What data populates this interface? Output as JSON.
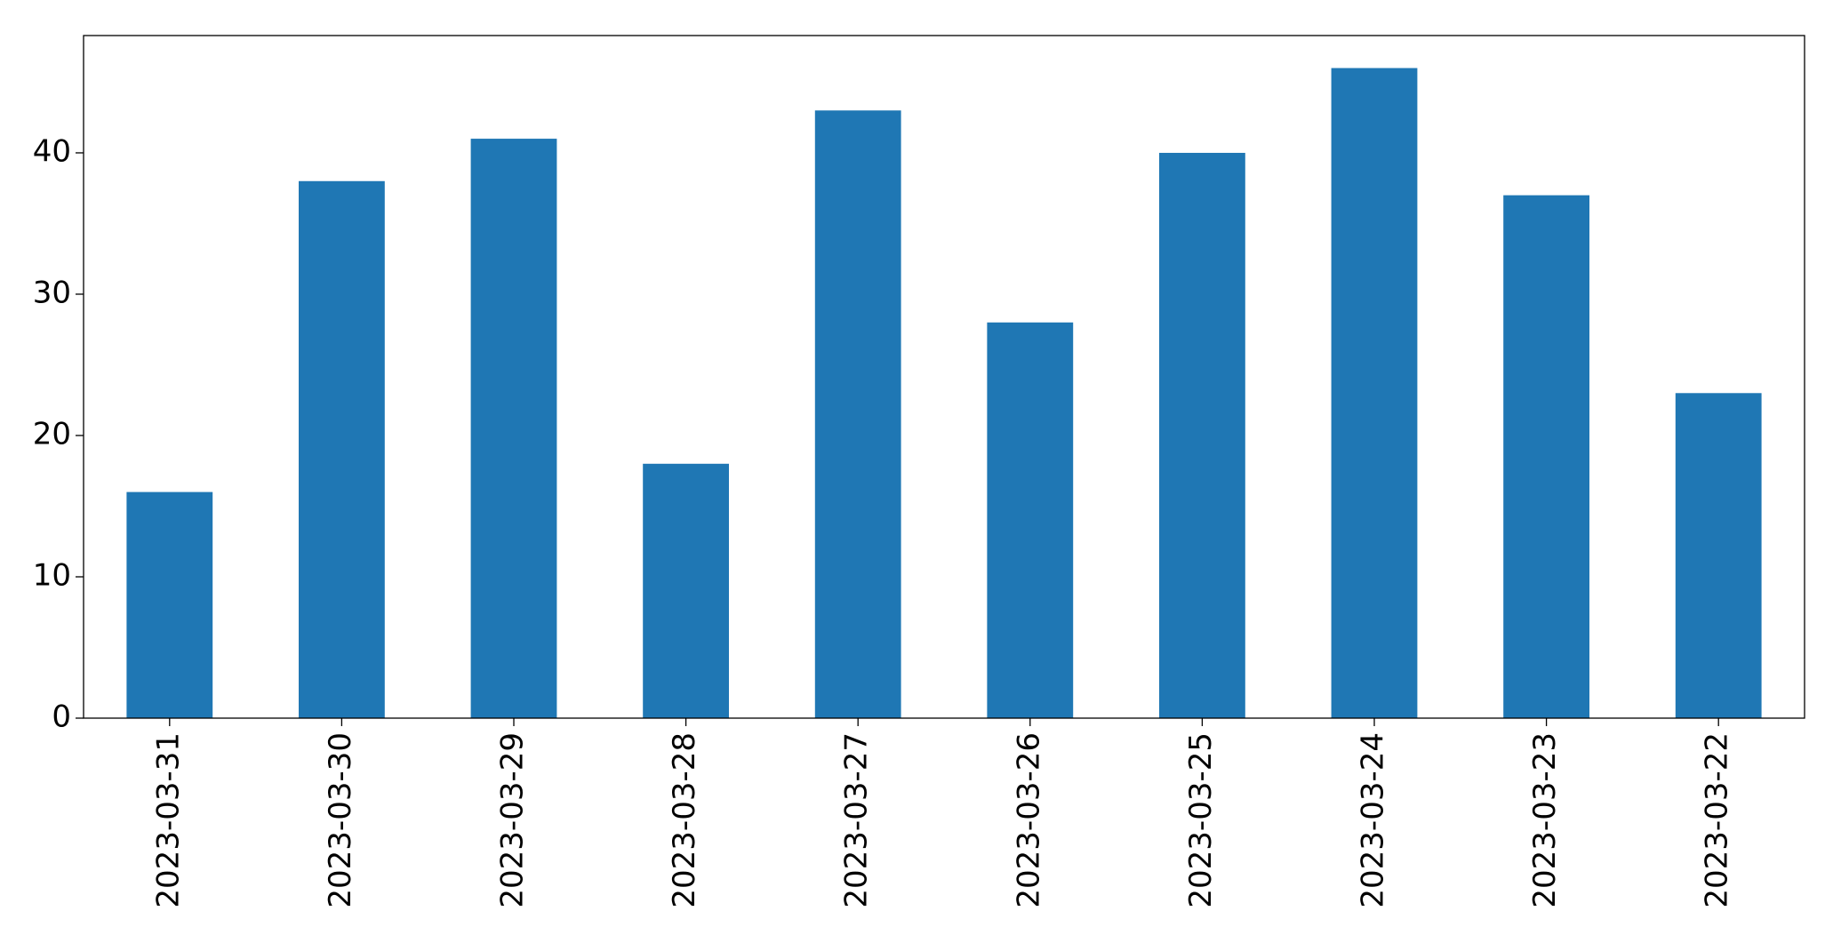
{
  "chart_data": {
    "type": "bar",
    "categories": [
      "2023-03-31",
      "2023-03-30",
      "2023-03-29",
      "2023-03-28",
      "2023-03-27",
      "2023-03-26",
      "2023-03-25",
      "2023-03-24",
      "2023-03-23",
      "2023-03-22"
    ],
    "values": [
      16,
      38,
      41,
      18,
      43,
      28,
      40,
      46,
      37,
      23
    ],
    "color": "#1f77b4",
    "ylim": [
      0,
      48.3
    ],
    "yticks": [
      0,
      10,
      20,
      30,
      40
    ],
    "grid": false
  }
}
